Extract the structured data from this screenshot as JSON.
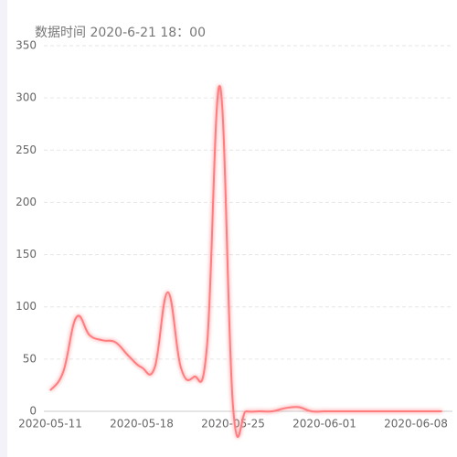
{
  "chart_data": {
    "type": "line",
    "title": "数据时间 2020-6-21 18：00",
    "categories": [
      "2020-05-11",
      null,
      null,
      null,
      null,
      null,
      null,
      "2020-05-18",
      null,
      null,
      null,
      null,
      null,
      null,
      "2020-05-25",
      null,
      null,
      null,
      null,
      null,
      null,
      "2020-06-01",
      null,
      null,
      null,
      null,
      null,
      null,
      "2020-06-08",
      null,
      null
    ],
    "series": [
      {
        "color": "#ff7b7f",
        "values": [
          20,
          38,
          90,
          73,
          68,
          66,
          53,
          42,
          42,
          114,
          42,
          33,
          62,
          311,
          4,
          0,
          0,
          0,
          3,
          4,
          0,
          0,
          0,
          0,
          0,
          0,
          0,
          0,
          0,
          0,
          0
        ]
      }
    ],
    "ylim": [
      0,
      350
    ],
    "yticks": [
      0,
      50,
      100,
      150,
      200,
      250,
      300,
      350
    ],
    "grid": true
  }
}
